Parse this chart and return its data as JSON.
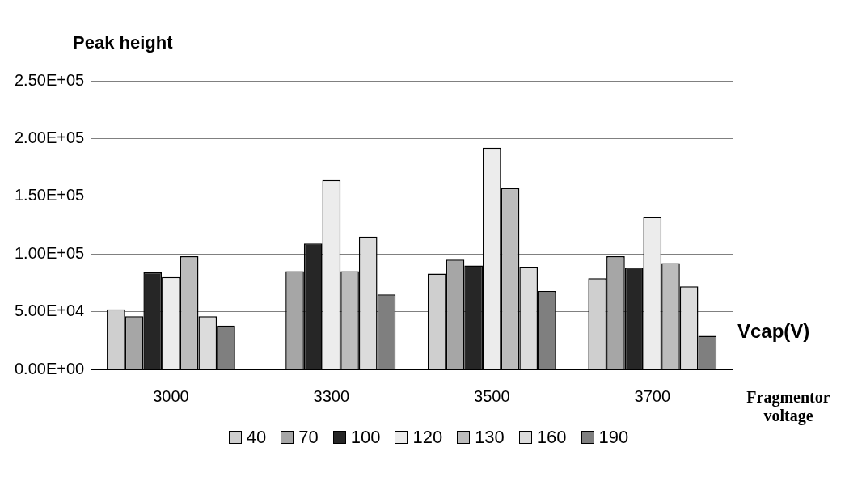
{
  "chart_data": {
    "type": "bar",
    "title": "Peak height",
    "xlabel": "Vcap(V)",
    "legend_title": "Fragmentor voltage",
    "categories": [
      "3000",
      "3300",
      "3500",
      "3700"
    ],
    "series": [
      {
        "name": "40",
        "color": "#cfcfcf",
        "values": [
          52000,
          null,
          83000,
          79000
        ]
      },
      {
        "name": "70",
        "color": "#a6a6a6",
        "values": [
          46000,
          85000,
          95000,
          98000
        ]
      },
      {
        "name": "100",
        "color": "#262626",
        "values": [
          84000,
          109000,
          90000,
          88000
        ]
      },
      {
        "name": "120",
        "color": "#ececec",
        "values": [
          80000,
          164000,
          192000,
          132000
        ]
      },
      {
        "name": "130",
        "color": "#bcbcbc",
        "values": [
          98000,
          85000,
          157000,
          92000
        ]
      },
      {
        "name": "160",
        "color": "#dcdcdc",
        "values": [
          46000,
          115000,
          89000,
          72000
        ]
      },
      {
        "name": "190",
        "color": "#7f7f7f",
        "values": [
          38000,
          65000,
          68000,
          29000
        ]
      }
    ],
    "ylim": [
      0,
      250000
    ],
    "yticks": [
      {
        "value": 0,
        "label": "0.00E+00"
      },
      {
        "value": 50000,
        "label": "5.00E+04"
      },
      {
        "value": 100000,
        "label": "1.00E+05"
      },
      {
        "value": 150000,
        "label": "1.50E+05"
      },
      {
        "value": 200000,
        "label": "2.00E+05"
      },
      {
        "value": 250000,
        "label": "2.50E+05"
      }
    ],
    "grid": "y",
    "legend": "bottom"
  }
}
